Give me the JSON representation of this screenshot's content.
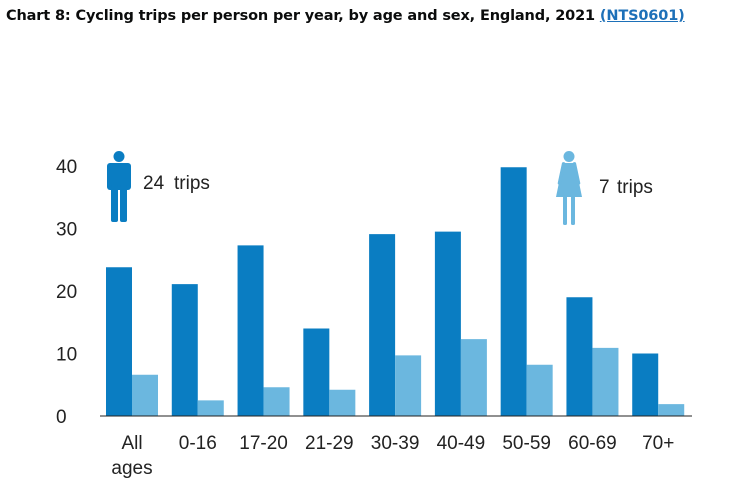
{
  "title": {
    "text": "Chart 8: Cycling trips per person per year, by age and sex, England, 2021",
    "link_text": "(NTS0601)"
  },
  "colors": {
    "male": "#0a7dc2",
    "female": "#6bb7df",
    "link": "#1d70b8"
  },
  "legend": {
    "male": {
      "icon": "male-person-icon",
      "value": "24",
      "unit": "trips"
    },
    "female": {
      "icon": "female-person-icon",
      "value": "7",
      "unit": "trips"
    }
  },
  "chart_data": {
    "type": "bar",
    "categories": [
      "All ages",
      "0-16",
      "17-20",
      "21-29",
      "30-39",
      "40-49",
      "50-59",
      "60-69",
      "70+"
    ],
    "series": [
      {
        "values": [
          23.8,
          21.1,
          27.3,
          14.0,
          29.1,
          29.5,
          39.8,
          19.0,
          10.0
        ]
      },
      {
        "values": [
          6.6,
          2.5,
          4.6,
          4.2,
          9.7,
          12.3,
          8.2,
          10.9,
          1.9
        ]
      }
    ],
    "yticks": [
      "0",
      "10",
      "20",
      "30",
      "40"
    ],
    "ylim": [
      0,
      40
    ],
    "grid": false,
    "legend_placement": "in-plot annotations"
  }
}
